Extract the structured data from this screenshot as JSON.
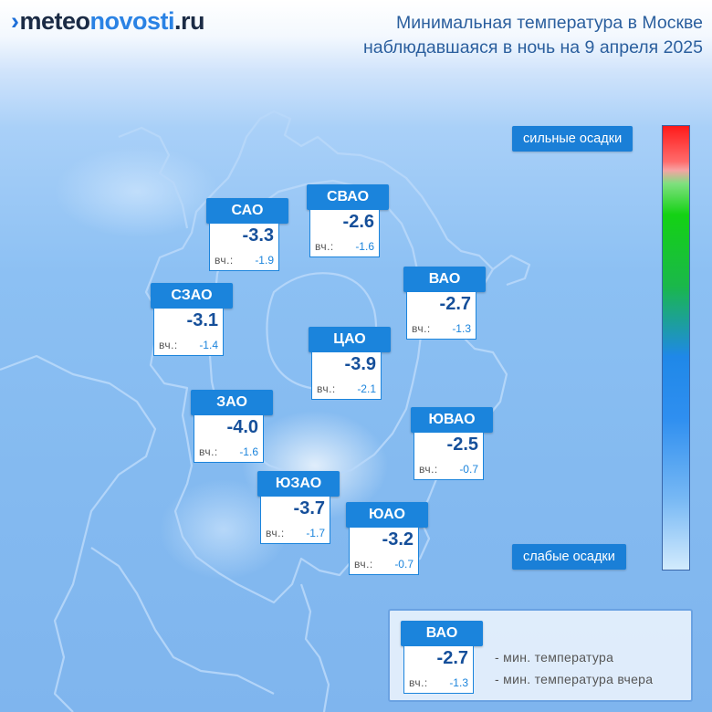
{
  "header": {
    "logo": {
      "part1": "meteo",
      "part2": "novosti",
      "part3": ".ru"
    },
    "title_line1": "Минимальная температура в Москве",
    "title_line2": "наблюдавшаяся в ночь на 9 апреля 2025"
  },
  "districts": [
    {
      "id": "sao",
      "name": "САО",
      "temp": "-3.3",
      "yesterday": "-1.9"
    },
    {
      "id": "svao",
      "name": "СВАО",
      "temp": "-2.6",
      "yesterday": "-1.6"
    },
    {
      "id": "vao",
      "name": "ВАО",
      "temp": "-2.7",
      "yesterday": "-1.3"
    },
    {
      "id": "szao",
      "name": "СЗАО",
      "temp": "-3.1",
      "yesterday": "-1.4"
    },
    {
      "id": "cao",
      "name": "ЦАО",
      "temp": "-3.9",
      "yesterday": "-2.1"
    },
    {
      "id": "zao",
      "name": "ЗАО",
      "temp": "-4.0",
      "yesterday": "-1.6"
    },
    {
      "id": "yuvao",
      "name": "ЮВАО",
      "temp": "-2.5",
      "yesterday": "-0.7"
    },
    {
      "id": "yuzao",
      "name": "ЮЗАО",
      "temp": "-3.7",
      "yesterday": "-1.7"
    },
    {
      "id": "yuao",
      "name": "ЮАО",
      "temp": "-3.2",
      "yesterday": "-0.7"
    }
  ],
  "yesterday_label": "вч.:",
  "scale": {
    "top_label": "сильные осадки",
    "bottom_label": "слабые осадки"
  },
  "legend": {
    "sample": {
      "name": "ВАО",
      "temp": "-2.7",
      "yesterday": "-1.3"
    },
    "line1": "- мин. температура",
    "line2": "- мин. температура вчера"
  },
  "colors": {
    "accent": "#1b84dc",
    "title": "#2b5f9e",
    "temp_value": "#154f9a"
  }
}
